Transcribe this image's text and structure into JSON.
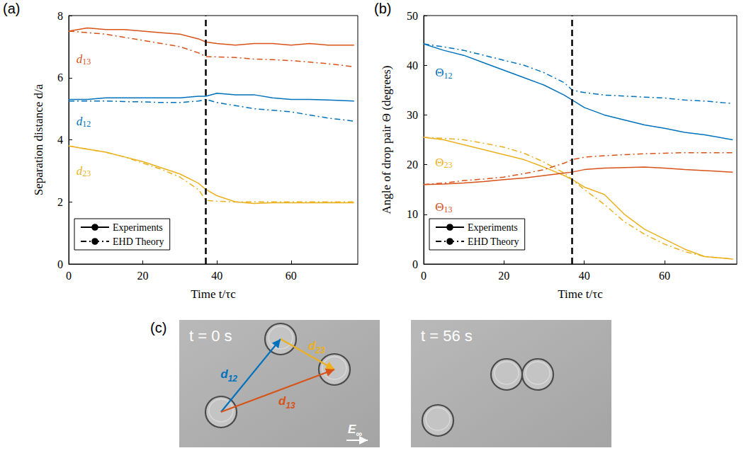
{
  "chart_data": [
    {
      "type": "line",
      "panel": "(a)",
      "x_label": "Time t/τc",
      "y_label": "Separation distance d/a",
      "xlim": [
        0,
        78
      ],
      "xticks": [
        0,
        20,
        40,
        60
      ],
      "ylim": [
        0,
        8
      ],
      "yticks": [
        0,
        2,
        4,
        6,
        8
      ],
      "grid": false,
      "legend": "lower left",
      "vertical_line": 37,
      "x": [
        0,
        5,
        10,
        15,
        20,
        25,
        30,
        35,
        37,
        40,
        45,
        50,
        55,
        60,
        65,
        70,
        77
      ],
      "series": [
        {
          "name": "Experiments",
          "label": "d13",
          "color": "#D95319",
          "line_style": "solid",
          "values": [
            7.5,
            7.6,
            7.55,
            7.55,
            7.5,
            7.45,
            7.4,
            7.25,
            7.15,
            7.1,
            7.05,
            7.1,
            7.1,
            7.05,
            7.1,
            7.05,
            7.05
          ]
        },
        {
          "name": "EHD Theory",
          "label": "d13",
          "color": "#D95319",
          "line_style": "dashdot",
          "values": [
            7.5,
            7.45,
            7.4,
            7.3,
            7.2,
            7.1,
            7.0,
            6.8,
            6.68,
            6.67,
            6.65,
            6.6,
            6.58,
            6.55,
            6.5,
            6.45,
            6.35
          ]
        },
        {
          "name": "Experiments",
          "label": "d12",
          "color": "#0072BD",
          "line_style": "solid",
          "values": [
            5.3,
            5.3,
            5.35,
            5.35,
            5.35,
            5.35,
            5.35,
            5.4,
            5.4,
            5.5,
            5.45,
            5.45,
            5.35,
            5.3,
            5.3,
            5.28,
            5.25
          ]
        },
        {
          "name": "EHD Theory",
          "label": "d12",
          "color": "#0072BD",
          "line_style": "dashdot",
          "values": [
            5.25,
            5.25,
            5.25,
            5.23,
            5.22,
            5.2,
            5.2,
            5.25,
            5.3,
            5.2,
            5.1,
            5.0,
            4.95,
            4.9,
            4.8,
            4.7,
            4.6
          ]
        },
        {
          "name": "Experiments",
          "label": "d23",
          "color": "#EDB120",
          "line_style": "solid",
          "values": [
            3.8,
            3.7,
            3.6,
            3.45,
            3.3,
            3.1,
            2.9,
            2.6,
            2.4,
            2.2,
            2.0,
            1.95,
            1.97,
            1.97,
            1.97,
            1.98,
            1.97
          ]
        },
        {
          "name": "EHD Theory",
          "label": "d23",
          "color": "#EDB120",
          "line_style": "dashdot",
          "values": [
            3.8,
            3.7,
            3.6,
            3.45,
            3.25,
            3.05,
            2.8,
            2.4,
            2.05,
            2.02,
            2.0,
            2.0,
            2.0,
            2.0,
            2.0,
            2.0,
            2.0
          ]
        }
      ]
    },
    {
      "type": "line",
      "panel": "(b)",
      "x_label": "Time t/τc",
      "y_label": "Angle of drop pair Θ (degrees)",
      "xlim": [
        0,
        78
      ],
      "xticks": [
        0,
        20,
        40,
        60
      ],
      "ylim": [
        0,
        50
      ],
      "yticks": [
        0,
        10,
        20,
        30,
        40,
        50
      ],
      "grid": false,
      "legend": "lower left",
      "vertical_line": 37,
      "x": [
        0,
        5,
        10,
        15,
        20,
        25,
        30,
        35,
        37,
        40,
        45,
        50,
        55,
        60,
        65,
        70,
        77
      ],
      "series": [
        {
          "name": "Experiments",
          "label": "Θ12",
          "color": "#0072BD",
          "line_style": "solid",
          "values": [
            44.3,
            43,
            42,
            40.5,
            39,
            37.5,
            36,
            34,
            33,
            31.5,
            30,
            29,
            28,
            27.3,
            26.5,
            26,
            25
          ]
        },
        {
          "name": "EHD Theory",
          "label": "Θ12",
          "color": "#0072BD",
          "line_style": "dashdot",
          "values": [
            44.3,
            43.7,
            43,
            42,
            41,
            40,
            38.5,
            36.5,
            35,
            34.5,
            34,
            33.8,
            33.6,
            33.4,
            33,
            32.8,
            32.3
          ]
        },
        {
          "name": "Experiments",
          "label": "Θ23",
          "color": "#EDB120",
          "line_style": "solid",
          "values": [
            25.5,
            25,
            24,
            23,
            22,
            21,
            19.5,
            17.8,
            17,
            15.5,
            14,
            10,
            7,
            5,
            3,
            1.5,
            1
          ]
        },
        {
          "name": "EHD Theory",
          "label": "Θ23",
          "color": "#EDB120",
          "line_style": "dashdot",
          "values": [
            25.5,
            25.3,
            25,
            24.3,
            23.5,
            22.3,
            20.5,
            18.3,
            17,
            15,
            12,
            8.5,
            6,
            4,
            2.5,
            1.5,
            1
          ]
        },
        {
          "name": "Experiments",
          "label": "Θ13",
          "color": "#D95319",
          "line_style": "solid",
          "values": [
            16,
            16.1,
            16.3,
            16.6,
            17,
            17.3,
            17.8,
            18.3,
            18.5,
            19,
            19.3,
            19.4,
            19.5,
            19.3,
            19,
            18.8,
            18.5
          ]
        },
        {
          "name": "EHD Theory",
          "label": "Θ13",
          "color": "#D95319",
          "line_style": "dashdot",
          "values": [
            16,
            16.3,
            16.8,
            17.1,
            17.5,
            18.2,
            19,
            20.3,
            21,
            21.5,
            21.8,
            22,
            22.2,
            22.3,
            22.4,
            22.4,
            22.4
          ]
        }
      ]
    }
  ],
  "panel_c": {
    "panel": "(c)",
    "frames": [
      {
        "time_label": "t = 0 s",
        "vectors": [
          {
            "label": "d12",
            "color": "#0072BD"
          },
          {
            "label": "d23",
            "color": "#EDB120"
          },
          {
            "label": "d13",
            "color": "#D95319"
          }
        ],
        "field_label": "E∞"
      },
      {
        "time_label": "t = 56 s"
      }
    ]
  }
}
